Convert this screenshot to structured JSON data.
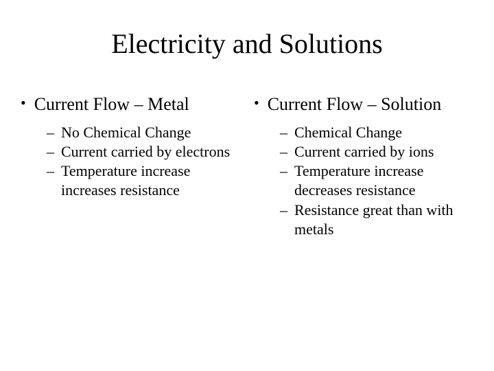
{
  "title": "Electricity and Solutions",
  "left": {
    "heading": "Current Flow – Metal",
    "items": [
      "No Chemical Change",
      "Current carried by electrons",
      "Temperature increase increases resistance"
    ]
  },
  "right": {
    "heading": "Current Flow – Solution",
    "items": [
      "Chemical Change",
      "Current carried by ions",
      "Temperature increase decreases resistance",
      "Resistance great than with metals"
    ]
  },
  "style": {
    "background_color": "#ffffff",
    "text_color": "#000000",
    "font_family": "Times New Roman",
    "title_fontsize": 40,
    "heading_fontsize": 26,
    "subitem_fontsize": 22,
    "bullet_char": "•",
    "dash_char": "–"
  }
}
